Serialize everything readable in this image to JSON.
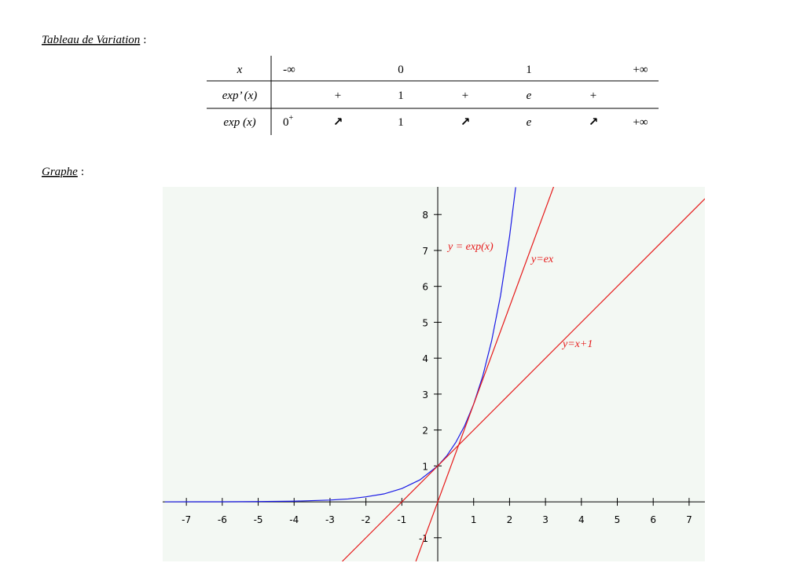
{
  "variation_heading": {
    "label": "Tableau de Variation",
    "suffix": ":"
  },
  "table": {
    "rows": [
      [
        "x",
        "-∞",
        null,
        "0",
        null,
        "1",
        null,
        "+∞"
      ],
      [
        "exp’ (x)",
        null,
        "+",
        "1",
        "+",
        "e",
        "+",
        null
      ],
      [
        "exp (x)",
        {
          "base": "0",
          "sup": "+"
        },
        "↗",
        "1",
        "↗",
        "e",
        "↗",
        "+∞"
      ]
    ]
  },
  "graph_heading": {
    "label": "Graphe",
    "suffix": ":"
  },
  "graph": {
    "xlim": [
      -7.66,
      7.44
    ],
    "ylim": [
      -1.66,
      8.77
    ],
    "xticks": [
      -7,
      -6,
      -5,
      -4,
      -3,
      -2,
      -1,
      1,
      2,
      3,
      4,
      5,
      6,
      7
    ],
    "yticks": [
      -1,
      1,
      2,
      3,
      4,
      5,
      6,
      7,
      8
    ],
    "curves": [
      {
        "name": "y = exp(x)",
        "color": "#1a1ae6",
        "x": [
          -7.6,
          -6,
          -5,
          -4,
          -3,
          -2.5,
          -2,
          -1.5,
          -1,
          -0.5,
          0,
          0.25,
          0.5,
          0.75,
          1,
          1.25,
          1.5,
          1.75,
          2,
          2.17
        ],
        "y": [
          0.0005,
          0.0025,
          0.0067,
          0.018,
          0.05,
          0.08,
          0.14,
          0.22,
          0.37,
          0.61,
          1,
          1.28,
          1.65,
          2.12,
          2.72,
          3.49,
          4.48,
          5.75,
          7.39,
          8.76
        ]
      },
      {
        "name": "y=ex",
        "color": "#e61a1a",
        "x": [
          -0.61,
          3.23
        ],
        "y": [
          -1.66,
          8.78
        ]
      },
      {
        "name": "y=x+1",
        "color": "#e61a1a",
        "x": [
          -2.66,
          7.44
        ],
        "y": [
          -1.66,
          8.44
        ]
      }
    ]
  }
}
